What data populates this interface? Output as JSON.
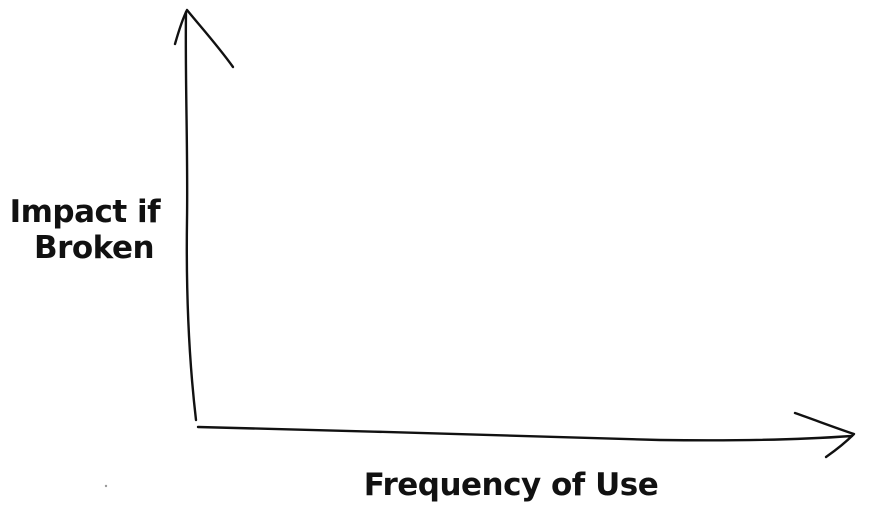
{
  "axes": {
    "y_label_lines": [
      "Impact if",
      "Broken"
    ],
    "x_label": "Frequency of Use"
  }
}
